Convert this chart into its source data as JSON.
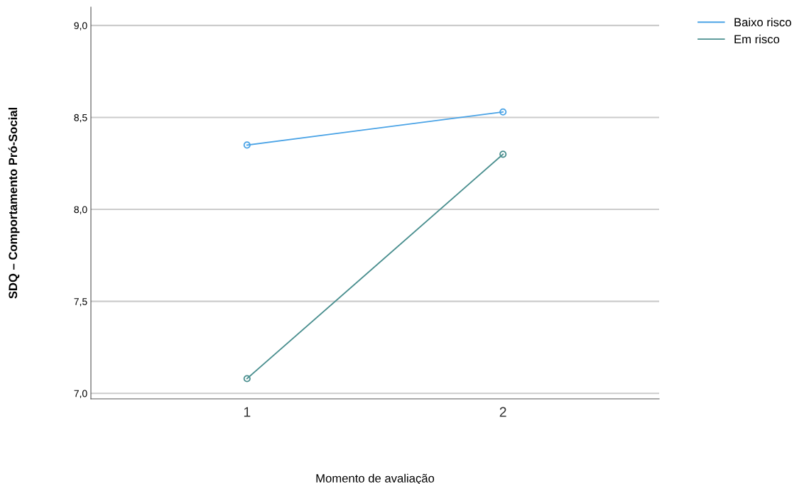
{
  "chart_data": {
    "type": "line",
    "xlabel": "Momento de avaliação",
    "ylabel": "SDQ – Comportamento Pró-Social",
    "categories": [
      "1",
      "2"
    ],
    "series": [
      {
        "name": "Baixo risco",
        "color": "#4aa3e6",
        "values": [
          8.35,
          8.53
        ]
      },
      {
        "name": "Em risco",
        "color": "#4a8f8f",
        "values": [
          7.08,
          8.3
        ]
      }
    ],
    "ylim": [
      6.97,
      9.1
    ],
    "yticks": [
      {
        "value": 7.0,
        "label": "7,0"
      },
      {
        "value": 7.5,
        "label": "7,5"
      },
      {
        "value": 8.0,
        "label": "8,0"
      },
      {
        "value": 8.5,
        "label": "8,5"
      },
      {
        "value": 9.0,
        "label": "9,0"
      }
    ],
    "grid": "y",
    "legend": "top right",
    "marker": "circle",
    "line_style": "solid"
  }
}
